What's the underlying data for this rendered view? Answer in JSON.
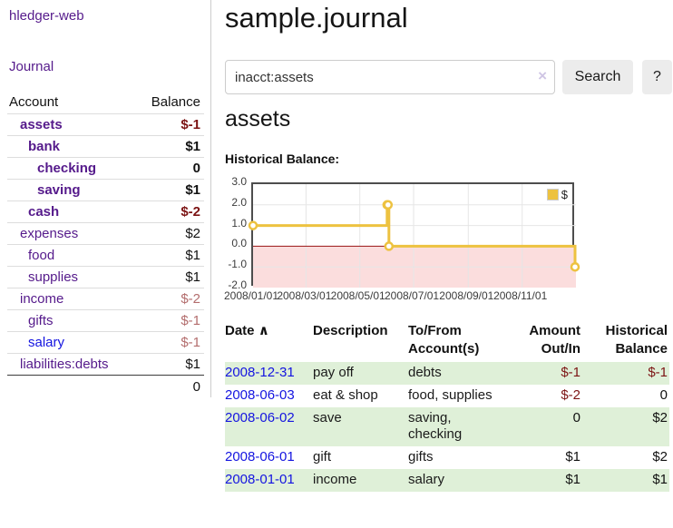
{
  "sidebar": {
    "brand": "hledger-web",
    "nav": {
      "journal": "Journal"
    },
    "accounts_table": {
      "header": {
        "account": "Account",
        "balance": "Balance"
      },
      "rows": [
        {
          "name": "assets",
          "name_class": "lvl1 strong",
          "balance": "$-1",
          "bal_class": "strong neg"
        },
        {
          "name": "bank",
          "name_class": "lvl2 strong",
          "balance": "$1",
          "bal_class": "strong"
        },
        {
          "name": "checking",
          "name_class": "lvl3 strong",
          "balance": "0",
          "bal_class": "strong"
        },
        {
          "name": "saving",
          "name_class": "lvl3 strong",
          "balance": "$1",
          "bal_class": "strong"
        },
        {
          "name": "cash",
          "name_class": "lvl2 strong",
          "balance": "$-2",
          "bal_class": "strong neg"
        },
        {
          "name": "expenses",
          "name_class": "lvl1",
          "balance": "$2",
          "bal_class": ""
        },
        {
          "name": "food",
          "name_class": "lvl2",
          "balance": "$1",
          "bal_class": ""
        },
        {
          "name": "supplies",
          "name_class": "lvl2",
          "balance": "$1",
          "bal_class": ""
        },
        {
          "name": "income",
          "name_class": "lvl1",
          "balance": "$-2",
          "bal_class": "negmuted"
        },
        {
          "name": "gifts",
          "name_class": "lvl2",
          "balance": "$-1",
          "bal_class": "negmuted"
        },
        {
          "name": "salary",
          "name_class": "lvl2 unvisited",
          "balance": "$-1",
          "bal_class": "negmuted"
        },
        {
          "name": "liabilities:debts",
          "name_class": "lvl1",
          "balance": "$1",
          "bal_class": ""
        }
      ],
      "total": "0"
    }
  },
  "main": {
    "title": "sample.journal",
    "search": {
      "value": "inacct:assets",
      "clear_icon": "×",
      "search_button": "Search",
      "help_button": "?"
    },
    "account_heading": "assets",
    "chart_title": "Historical Balance:"
  },
  "chart_data": {
    "type": "line",
    "step": true,
    "title": "Historical Balance:",
    "series": [
      {
        "name": "$",
        "color": "#edc240",
        "points": [
          [
            "2008-01-01",
            1
          ],
          [
            "2008-06-01",
            2
          ],
          [
            "2008-06-02",
            2
          ],
          [
            "2008-06-03",
            0
          ],
          [
            "2008-12-31",
            -1
          ]
        ]
      }
    ],
    "x_domain": [
      "2008-01-01",
      "2009-01-01"
    ],
    "ylim": [
      -2,
      3
    ],
    "yticks": [
      3.0,
      2.0,
      1.0,
      0.0,
      -1.0,
      -2.0
    ],
    "ytick_labels": [
      "3.0",
      "2.0",
      "1.0",
      "0.0",
      "-1.0",
      "-2.0"
    ],
    "xtick_labels": [
      "2008/01/01",
      "2008/03/01",
      "2008/05/01",
      "2008/07/01",
      "2008/09/01",
      "2008/11/01"
    ],
    "legend": {
      "label": "$",
      "swatch_color": "#edc240",
      "position": "top-right"
    },
    "grid": true,
    "grid_color": "#e6e6e6",
    "negative_region_fill": "#fbdddd",
    "zero_line_color": "#991414"
  },
  "register": {
    "columns": {
      "date": "Date",
      "sort_icon": "∧",
      "description": "Description",
      "accounts": "To/From Account(s)",
      "amount": "Amount Out/In",
      "balance": "Historical Balance"
    },
    "rows": [
      {
        "date": "2008-12-31",
        "description": "pay off",
        "accounts": "debts",
        "amount": "$-1",
        "amount_class": "neg",
        "balance": "$-1",
        "balance_class": "neg"
      },
      {
        "date": "2008-06-03",
        "description": "eat & shop",
        "accounts": "food, supplies",
        "amount": "$-2",
        "amount_class": "neg",
        "balance": "0",
        "balance_class": ""
      },
      {
        "date": "2008-06-02",
        "description": "save",
        "accounts": "saving, checking",
        "amount": "0",
        "amount_class": "",
        "balance": "$2",
        "balance_class": ""
      },
      {
        "date": "2008-06-01",
        "description": "gift",
        "accounts": "gifts",
        "amount": "$1",
        "amount_class": "",
        "balance": "$2",
        "balance_class": ""
      },
      {
        "date": "2008-01-01",
        "description": "income",
        "accounts": "salary",
        "amount": "$1",
        "amount_class": "",
        "balance": "$1",
        "balance_class": ""
      }
    ]
  }
}
